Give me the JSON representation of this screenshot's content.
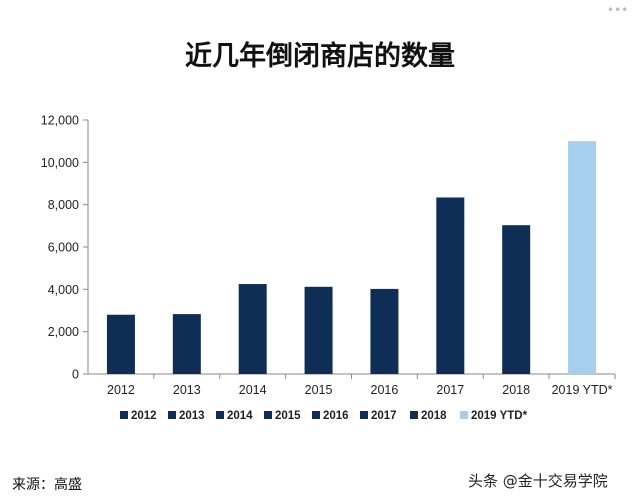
{
  "chart_data": {
    "type": "bar",
    "title": "近几年倒闭商店的数量",
    "categories": [
      "2012",
      "2013",
      "2014",
      "2015",
      "2016",
      "2017",
      "2018",
      "2019 YTD*"
    ],
    "values": [
      2800,
      2830,
      4250,
      4120,
      4020,
      8340,
      7030,
      11000
    ],
    "colors": [
      "#0f2e55",
      "#0f2e55",
      "#0f2e55",
      "#0f2e55",
      "#0f2e55",
      "#0f2e55",
      "#0f2e55",
      "#a6cfee"
    ],
    "ylim": [
      0,
      12000
    ],
    "yticks": [
      "0",
      "2,000",
      "4,000",
      "6,000",
      "8,000",
      "10,000",
      "12,000"
    ],
    "xlabel": "",
    "ylabel": "",
    "grid": false,
    "legend": "bottom",
    "legend_entries": [
      "2012",
      "2013",
      "2014",
      "2015",
      "2016",
      "2017",
      "2018",
      "2019 YTD*"
    ]
  },
  "footer": {
    "source": "来源：高盛",
    "watermark": "头条 @金十交易学院"
  }
}
